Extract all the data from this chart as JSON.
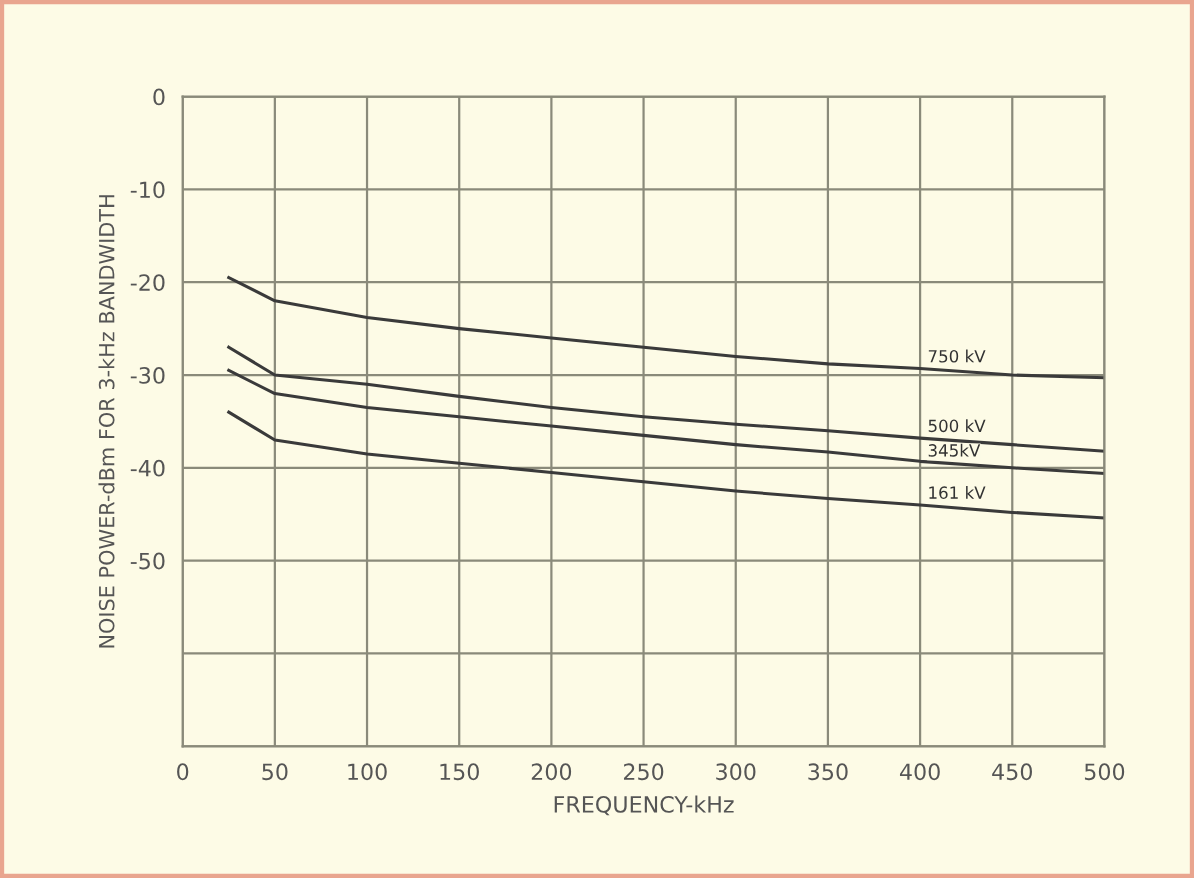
{
  "chart_data": {
    "type": "line",
    "xlabel": "FREQUENCY-kHz",
    "ylabel": "NOISE POWER-dBm FOR 3-kHz BANDWIDTH",
    "x": [
      25,
      50,
      100,
      150,
      200,
      250,
      300,
      350,
      400,
      450,
      500
    ],
    "series": [
      {
        "name": "750 kV",
        "color": "#3a3a3a",
        "values": [
          -19.5,
          -22,
          -23.8,
          -25,
          -26,
          -27,
          -28,
          -28.8,
          -29.3,
          -30,
          -30.3
        ]
      },
      {
        "name": "500 kV",
        "color": "#3a3a3a",
        "values": [
          -27,
          -30,
          -31,
          -32.3,
          -33.5,
          -34.5,
          -35.3,
          -36,
          -36.8,
          -37.5,
          -38.2
        ]
      },
      {
        "name": "345kV",
        "color": "#3a3a3a",
        "values": [
          -29.5,
          -32,
          -33.5,
          -34.5,
          -35.5,
          -36.5,
          -37.5,
          -38.3,
          -39.3,
          -40,
          -40.6
        ]
      },
      {
        "name": "161 kV",
        "color": "#3a3a3a",
        "values": [
          -34,
          -37,
          -38.5,
          -39.5,
          -40.5,
          -41.5,
          -42.5,
          -43.3,
          -44,
          -44.8,
          -45.4
        ]
      }
    ],
    "xlim": [
      0,
      500
    ],
    "ylim": [
      -70,
      0
    ],
    "xticks": [
      0,
      50,
      100,
      150,
      200,
      250,
      300,
      350,
      400,
      450,
      500
    ],
    "yticks": [
      0,
      -10,
      -20,
      -30,
      -40,
      -50,
      {
        "value": -60,
        "label": null
      },
      {
        "value": -70,
        "label": null
      }
    ],
    "grid": true,
    "marker": "none",
    "line_style": "solid"
  }
}
